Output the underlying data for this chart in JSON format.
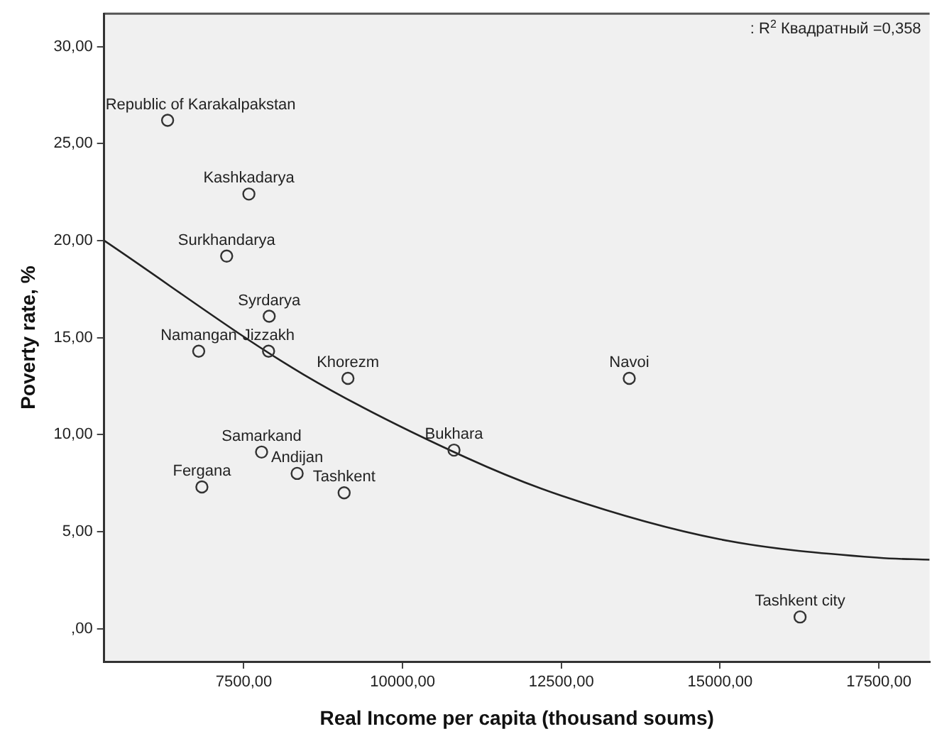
{
  "chart_data": {
    "type": "scatter",
    "xlabel": "Real Income per capita (thousand soums)",
    "ylabel": "Poverty rate, %",
    "xlim": [
      5300,
      18300
    ],
    "ylim": [
      -1.7,
      31.7
    ],
    "xticks": [
      {
        "value": 7500,
        "label": "7500,00"
      },
      {
        "value": 10000,
        "label": "10000,00"
      },
      {
        "value": 12500,
        "label": "12500,00"
      },
      {
        "value": 15000,
        "label": "15000,00"
      },
      {
        "value": 17500,
        "label": "17500,00"
      }
    ],
    "yticks": [
      {
        "value": 0,
        "label": ",00"
      },
      {
        "value": 5,
        "label": "5,00"
      },
      {
        "value": 10,
        "label": "10,00"
      },
      {
        "value": 15,
        "label": "15,00"
      },
      {
        "value": 20,
        "label": "20,00"
      },
      {
        "value": 25,
        "label": "25,00"
      },
      {
        "value": 30,
        "label": "30,00"
      }
    ],
    "grid": false,
    "legend": false,
    "marker": "circle",
    "annotations": [
      ": R$^{2}$ Квадратный =0,358",
      {
        "text": "Republic of Karakalpakstan",
        "x": 6300,
        "y": 26.2
      },
      {
        "text": "Kashkadarya",
        "x": 7580,
        "y": 22.4
      },
      {
        "text": "Surkhandarya",
        "x": 7230,
        "y": 19.2
      },
      {
        "text": "Syrdarya",
        "x": 7900,
        "y": 16.1
      },
      {
        "text": "Namangan",
        "x": 6790,
        "y": 14.3
      },
      {
        "text": "Jizzakh",
        "x": 7890,
        "y": 14.3
      },
      {
        "text": "Khorezm",
        "x": 9140,
        "y": 12.9
      },
      {
        "text": "Samarkand",
        "x": 7780,
        "y": 9.1
      },
      {
        "text": "Andijan",
        "x": 8340,
        "y": 8.0
      },
      {
        "text": "Fergana",
        "x": 6840,
        "y": 7.3
      },
      {
        "text": "Tashkent",
        "x": 9080,
        "y": 7.0
      },
      {
        "text": "Bukhara",
        "x": 10810,
        "y": 9.2
      },
      {
        "text": "Navoi",
        "x": 13570,
        "y": 12.9
      },
      {
        "text": "Tashkent city",
        "x": 16260,
        "y": 0.6
      }
    ],
    "series": [
      {
        "color": "#333333",
        "x": [
          6300,
          7580,
          7230,
          7900,
          6790,
          7890,
          9140,
          7780,
          8340,
          6840,
          9080,
          10810,
          13570,
          16260
        ],
        "values": [
          26.2,
          22.4,
          19.2,
          16.1,
          14.3,
          14.3,
          12.9,
          9.1,
          8.0,
          7.3,
          7.0,
          9.2,
          12.9,
          0.6
        ]
      },
      {
        "type": "line",
        "marker": "none",
        "color": "#222222",
        "x": [
          5300,
          8440,
          11010,
          12500,
          15000,
          17500,
          18300
        ],
        "values": [
          20.0,
          13.1,
          8.8,
          6.85,
          4.6,
          3.65,
          3.55
        ]
      }
    ]
  }
}
